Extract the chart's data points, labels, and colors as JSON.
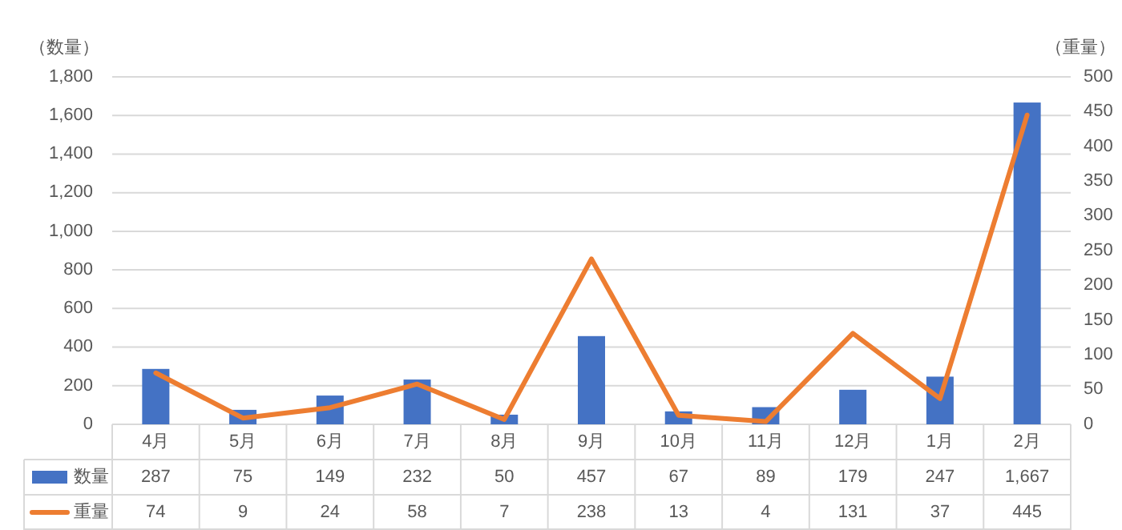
{
  "chart_data": {
    "type": "bar",
    "ylabel": "（数量）",
    "y2label": "（重量）",
    "categories": [
      "4月",
      "5月",
      "6月",
      "7月",
      "8月",
      "9月",
      "10月",
      "11月",
      "12月",
      "1月",
      "2月"
    ],
    "series": [
      {
        "name": "数量",
        "color": "#4472c4",
        "values": [
          287,
          75,
          149,
          232,
          50,
          457,
          67,
          89,
          179,
          247,
          1667
        ],
        "value_labels": [
          "287",
          "75",
          "149",
          "232",
          "50",
          "457",
          "67",
          "89",
          "179",
          "247",
          "1,667"
        ]
      },
      {
        "name": "重量",
        "type": "line",
        "axis": "y2",
        "color": "#ed7d31",
        "values": [
          74,
          9,
          24,
          58,
          7,
          238,
          13,
          4,
          131,
          37,
          445
        ],
        "value_labels": [
          "74",
          "9",
          "24",
          "58",
          "7",
          "238",
          "13",
          "4",
          "131",
          "37",
          "445"
        ]
      }
    ],
    "ylim": [
      0,
      1800
    ],
    "yticks": [
      0,
      200,
      400,
      600,
      800,
      {
        "value": 1000,
        "label": "1,000"
      },
      {
        "value": 1200,
        "label": "1,200"
      },
      {
        "value": 1400,
        "label": "1,400"
      },
      {
        "value": 1600,
        "label": "1,600"
      },
      {
        "value": 1800,
        "label": "1,800"
      }
    ],
    "y2lim": [
      0,
      500
    ],
    "y2ticks": [
      0,
      50,
      100,
      150,
      200,
      250,
      300,
      350,
      400,
      450,
      500
    ],
    "grid": "y",
    "legend": "bottom",
    "line_style": "solid",
    "marker": "none"
  }
}
